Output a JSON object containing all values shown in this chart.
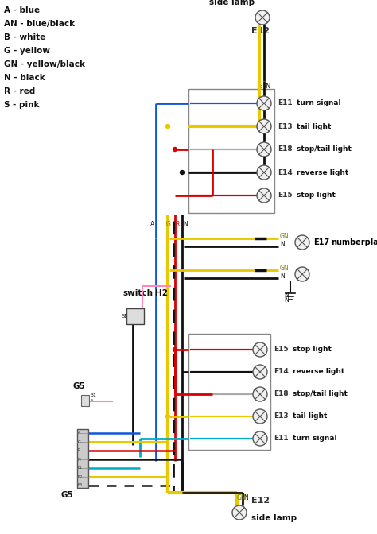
{
  "bg_color": "#ffffff",
  "legend": [
    {
      "code": "A",
      "desc": "blue"
    },
    {
      "code": "AN",
      "desc": "blue/black"
    },
    {
      "code": "B",
      "desc": "white"
    },
    {
      "code": "G",
      "desc": "yellow"
    },
    {
      "code": "GN",
      "desc": "yellow/black"
    },
    {
      "code": "N",
      "desc": "black"
    },
    {
      "code": "R",
      "desc": "red"
    },
    {
      "code": "S",
      "desc": "pink"
    }
  ],
  "top_box_labels": [
    "E11  turn signal",
    "E13  tail light",
    "E18  stop/tail light",
    "E14  reverse light",
    "E15  stop light"
  ],
  "bottom_box_labels": [
    "E15  stop light",
    "E14  reverse light",
    "E18  stop/tail light",
    "E13  tail light",
    "E11  turn signal"
  ],
  "wire_yellow": "#e8c800",
  "wire_black": "#111111",
  "wire_blue": "#1155dd",
  "wire_red": "#dd0000",
  "wire_cyan": "#00aacc",
  "wire_white": "#aaaaaa",
  "wire_pink": "#ff88bb",
  "wire_dashed_color": "#111111"
}
